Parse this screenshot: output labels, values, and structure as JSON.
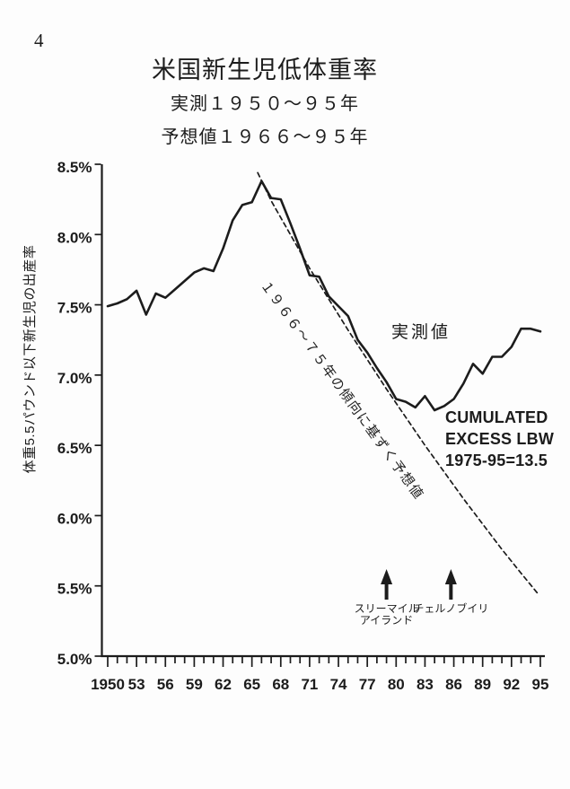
{
  "page": {
    "number": "4"
  },
  "colors": {
    "ink": "#1c1c1c",
    "paper": "#fdfdfd"
  },
  "header": {
    "title": "米国新生児低体重率",
    "subtitle_measured": "実測１９５０～９５年",
    "subtitle_predicted": "予想値１９６６～９５年"
  },
  "chart_data": {
    "type": "line",
    "title": "米国新生児低体重率",
    "subtitles": [
      "実測１９５０～９５年",
      "予想値１９６６～９５年"
    ],
    "xlabel": "",
    "ylabel": "体重5.5パウンド以下新生児の出産率",
    "xlim": [
      1950,
      1995
    ],
    "ylim": [
      5.0,
      8.5
    ],
    "grid": false,
    "legend_position": "none",
    "y_ticks": [
      {
        "value": 8.5,
        "label": "8.5%"
      },
      {
        "value": 8.0,
        "label": "8.0%"
      },
      {
        "value": 7.5,
        "label": "7.5%"
      },
      {
        "value": 7.0,
        "label": "7.0%"
      },
      {
        "value": 6.5,
        "label": "6.5%"
      },
      {
        "value": 6.0,
        "label": "6.0%"
      },
      {
        "value": 5.5,
        "label": "5.5%"
      },
      {
        "value": 5.0,
        "label": "5.0%"
      }
    ],
    "x_ticks": [
      {
        "year": 1950,
        "label": "1950"
      },
      {
        "year": 1953,
        "label": "53"
      },
      {
        "year": 1956,
        "label": "56"
      },
      {
        "year": 1959,
        "label": "59"
      },
      {
        "year": 1962,
        "label": "62"
      },
      {
        "year": 1965,
        "label": "65"
      },
      {
        "year": 1968,
        "label": "68"
      },
      {
        "year": 1971,
        "label": "71"
      },
      {
        "year": 1974,
        "label": "74"
      },
      {
        "year": 1977,
        "label": "77"
      },
      {
        "year": 1980,
        "label": "80"
      },
      {
        "year": 1983,
        "label": "83"
      },
      {
        "year": 1986,
        "label": "86"
      },
      {
        "year": 1989,
        "label": "89"
      },
      {
        "year": 1992,
        "label": "92"
      },
      {
        "year": 1995,
        "label": "95"
      }
    ],
    "minor_x_tick_every": 1,
    "series": [
      {
        "name": "実測値",
        "line": "solid",
        "points": [
          [
            1950,
            7.49
          ],
          [
            1951,
            7.51
          ],
          [
            1952,
            7.54
          ],
          [
            1953,
            7.6
          ],
          [
            1954,
            7.43
          ],
          [
            1955,
            7.58
          ],
          [
            1956,
            7.55
          ],
          [
            1957,
            7.61
          ],
          [
            1958,
            7.67
          ],
          [
            1959,
            7.73
          ],
          [
            1960,
            7.76
          ],
          [
            1961,
            7.74
          ],
          [
            1962,
            7.9
          ],
          [
            1963,
            8.1
          ],
          [
            1964,
            8.21
          ],
          [
            1965,
            8.23
          ],
          [
            1966,
            8.38
          ],
          [
            1967,
            8.26
          ],
          [
            1968,
            8.25
          ],
          [
            1969,
            8.08
          ],
          [
            1970,
            7.9
          ],
          [
            1971,
            7.71
          ],
          [
            1972,
            7.7
          ],
          [
            1973,
            7.56
          ],
          [
            1974,
            7.49
          ],
          [
            1975,
            7.42
          ],
          [
            1976,
            7.25
          ],
          [
            1977,
            7.16
          ],
          [
            1978,
            7.05
          ],
          [
            1979,
            6.95
          ],
          [
            1980,
            6.83
          ],
          [
            1981,
            6.81
          ],
          [
            1982,
            6.77
          ],
          [
            1983,
            6.85
          ],
          [
            1984,
            6.75
          ],
          [
            1985,
            6.78
          ],
          [
            1986,
            6.83
          ],
          [
            1987,
            6.94
          ],
          [
            1988,
            7.08
          ],
          [
            1989,
            7.01
          ],
          [
            1990,
            7.13
          ],
          [
            1991,
            7.13
          ],
          [
            1992,
            7.2
          ],
          [
            1993,
            7.33
          ],
          [
            1994,
            7.33
          ],
          [
            1995,
            7.31
          ]
        ]
      },
      {
        "name": "１９６６～７５年の傾向に基ずく予想値",
        "line": "dashed",
        "points": [
          [
            1965.6,
            8.44
          ],
          [
            1967,
            8.24
          ],
          [
            1969,
            8.0
          ],
          [
            1971,
            7.76
          ],
          [
            1973,
            7.54
          ],
          [
            1975,
            7.32
          ],
          [
            1977,
            7.11
          ],
          [
            1979,
            6.9
          ],
          [
            1981,
            6.7
          ],
          [
            1983,
            6.5
          ],
          [
            1985,
            6.31
          ],
          [
            1987,
            6.12
          ],
          [
            1989,
            5.94
          ],
          [
            1991,
            5.76
          ],
          [
            1993,
            5.59
          ],
          [
            1994.8,
            5.44
          ]
        ]
      }
    ],
    "annotations": {
      "series_label": "実測値",
      "trend_label": "１９６６～７５年の傾向に基ずく予想値",
      "cumulated_lines": [
        "CUMULATED",
        "EXCESS LBW",
        "1975-95=13.5"
      ],
      "events": [
        {
          "year": 1979.0,
          "label_lines": [
            "スリーマイル",
            "アイランド"
          ]
        },
        {
          "year": 1985.7,
          "label_lines": [
            "チェルノブイリ"
          ]
        }
      ]
    }
  }
}
